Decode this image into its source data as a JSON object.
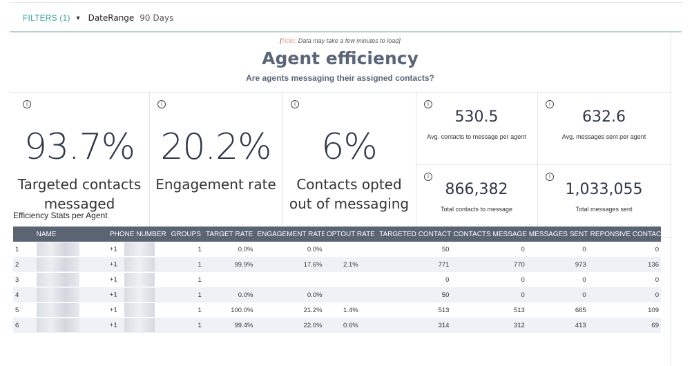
{
  "filters": {
    "label": "FILTERS (1)",
    "caret": "▼",
    "date_range_name": "DateRange",
    "date_range_value": "90 Days"
  },
  "header": {
    "note_prefix": "[",
    "note_label": "Note:",
    "note_text": " Data may take a few minutes to load]",
    "title": "Agent efficiency",
    "subtitle": "Are agents messaging their assigned contacts?"
  },
  "kpis": {
    "targeted": {
      "value": "93.7%",
      "label_line1": "Targeted contacts",
      "label_line2": "messaged"
    },
    "engagement": {
      "value": "20.2%",
      "label_line1": "Engagement rate"
    },
    "optout": {
      "value": "6%",
      "label_line1": "Contacts opted",
      "label_line2": "out of messaging"
    },
    "avg_contacts": {
      "value": "530.5",
      "label": "Avg. contacts to message per agent"
    },
    "avg_messages": {
      "value": "632.6",
      "label": "Avg. messages sent per agent"
    },
    "total_contacts": {
      "value": "866,382",
      "label": "Total contacts to message"
    },
    "total_messages": {
      "value": "1,033,055",
      "label": "Total messages sent"
    },
    "info_icon": "ⓘ"
  },
  "table": {
    "title": "Efficiency Stats per Agent",
    "columns": [
      "",
      "NAME",
      "PHONE NUMBER",
      "GROUPS",
      "TARGET RATE",
      "ENGAGEMENT RATE",
      "OPTOUT RATE",
      "TARGETED CONTACT",
      "CONTACTS MESSAGE",
      "MESSAGES SENT",
      "REPONSIVE CONTACT"
    ],
    "rows": [
      [
        "1",
        "",
        "+1",
        "1",
        "0.0%",
        "0.0%",
        "",
        "50",
        "0",
        "0",
        "0"
      ],
      [
        "2",
        "",
        "+1",
        "1",
        "99.9%",
        "17.6%",
        "2.1%",
        "771",
        "770",
        "973",
        "136"
      ],
      [
        "3",
        "",
        "+1",
        "1",
        "",
        "",
        "",
        "0",
        "0",
        "0",
        "0"
      ],
      [
        "4",
        "",
        "+1",
        "1",
        "0.0%",
        "0.0%",
        "",
        "50",
        "0",
        "0",
        "0"
      ],
      [
        "5",
        "",
        "+1",
        "1",
        "100.0%",
        "21.2%",
        "1.4%",
        "513",
        "513",
        "665",
        "109"
      ],
      [
        "6",
        "",
        "+1",
        "1",
        "99.4%",
        "22.0%",
        "0.6%",
        "314",
        "312",
        "413",
        "69"
      ]
    ]
  }
}
